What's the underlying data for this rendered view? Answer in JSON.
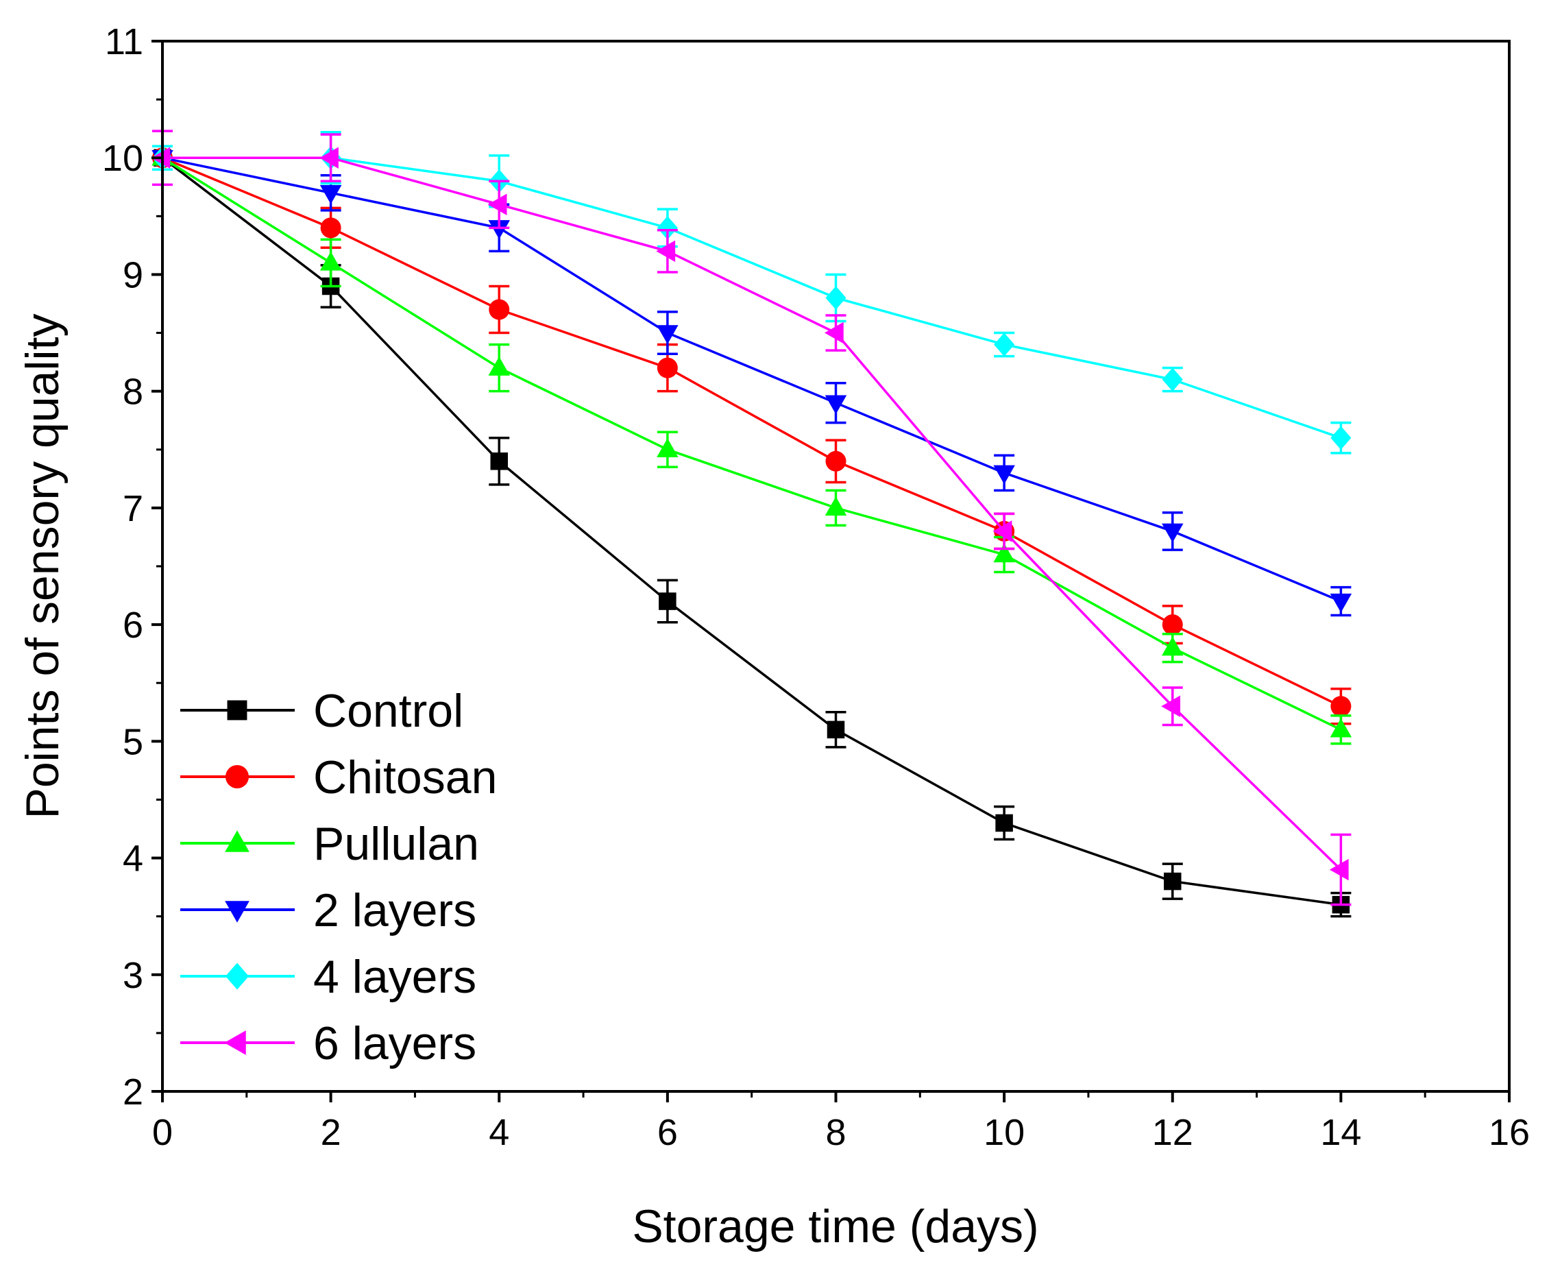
{
  "chart_data": {
    "type": "line",
    "title": "",
    "xlabel": "Storage time (days)",
    "ylabel": "Points of sensory quality",
    "xlim": [
      0,
      16
    ],
    "ylim": [
      2,
      11
    ],
    "xticks": [
      0,
      2,
      4,
      6,
      8,
      10,
      12,
      14,
      16
    ],
    "yticks": [
      2,
      3,
      4,
      5,
      6,
      7,
      8,
      9,
      10,
      11
    ],
    "grid": false,
    "legend_position": "bottom-left",
    "x": [
      0,
      2,
      4,
      6,
      8,
      10,
      12,
      14
    ],
    "series": [
      {
        "name": "Control",
        "color": "#000000",
        "marker": "square",
        "values": [
          10.0,
          8.9,
          7.4,
          6.2,
          5.1,
          4.3,
          3.8,
          3.6
        ],
        "errors": [
          0.1,
          0.18,
          0.2,
          0.18,
          0.15,
          0.14,
          0.15,
          0.1
        ]
      },
      {
        "name": "Chitosan",
        "color": "#ff0000",
        "marker": "circle",
        "values": [
          10.0,
          9.4,
          8.7,
          8.2,
          7.4,
          6.8,
          6.0,
          5.3
        ],
        "errors": [
          0.1,
          0.17,
          0.2,
          0.2,
          0.18,
          0.15,
          0.16,
          0.15
        ]
      },
      {
        "name": "Pullulan",
        "color": "#00ff00",
        "marker": "triangle-up",
        "values": [
          10.0,
          9.1,
          8.2,
          7.5,
          7.0,
          6.6,
          5.8,
          5.1
        ],
        "errors": [
          0.1,
          0.2,
          0.2,
          0.15,
          0.15,
          0.15,
          0.12,
          0.12
        ]
      },
      {
        "name": "2 layers",
        "color": "#0000ff",
        "marker": "triangle-down",
        "values": [
          10.0,
          9.7,
          9.4,
          8.5,
          7.9,
          7.3,
          6.8,
          6.2
        ],
        "errors": [
          0.1,
          0.15,
          0.2,
          0.18,
          0.17,
          0.15,
          0.16,
          0.12
        ]
      },
      {
        "name": "4 layers",
        "color": "#00ffff",
        "marker": "diamond",
        "values": [
          10.0,
          10.0,
          9.8,
          9.4,
          8.8,
          8.4,
          8.1,
          7.6
        ],
        "errors": [
          0.1,
          0.22,
          0.22,
          0.16,
          0.2,
          0.1,
          0.1,
          0.13
        ]
      },
      {
        "name": "6 layers",
        "color": "#ff00ff",
        "marker": "triangle-left",
        "values": [
          10.0,
          10.0,
          9.6,
          9.2,
          8.5,
          6.8,
          5.3,
          3.9
        ],
        "errors": [
          0.23,
          0.2,
          0.2,
          0.18,
          0.15,
          0.15,
          0.16,
          0.3
        ]
      }
    ]
  }
}
